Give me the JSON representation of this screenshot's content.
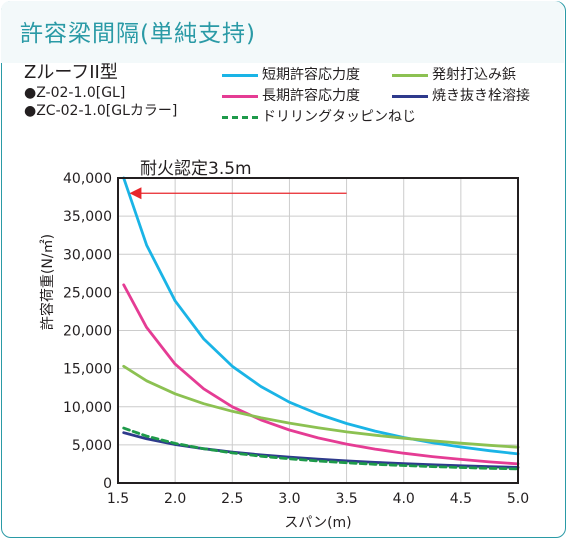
{
  "title": "許容梁間隔(単純支持)",
  "product": {
    "name": "ZルーフII型",
    "specs": [
      "●Z-02-1.0[GL]",
      "●ZC-02-1.0[GLカラー]"
    ]
  },
  "chart_data": {
    "type": "line",
    "xlabel": "スパン(m)",
    "ylabel": "許容荷重(N/㎡)",
    "xlim": [
      1.5,
      5.0
    ],
    "ylim": [
      0,
      40000
    ],
    "x_ticks": [
      "1.5",
      "2.0",
      "2.5",
      "3.0",
      "3.5",
      "4.0",
      "4.5",
      "5.0"
    ],
    "y_ticks": [
      "0",
      "5,000",
      "10,000",
      "15,000",
      "20,000",
      "25,000",
      "30,000",
      "35,000",
      "40,000"
    ],
    "grid": true,
    "series": [
      {
        "name": "短期許容応力度",
        "color": "#1ab4e6",
        "dash": false,
        "x": [
          1.55,
          1.75,
          2.0,
          2.25,
          2.5,
          2.75,
          3.0,
          3.25,
          3.5,
          3.75,
          4.0,
          4.25,
          4.5,
          4.75,
          5.0
        ],
        "y": [
          40000,
          31200,
          23900,
          18900,
          15300,
          12650,
          10600,
          9050,
          7800,
          6800,
          5970,
          5290,
          4720,
          4240,
          3820
        ]
      },
      {
        "name": "長期許容応力度",
        "color": "#e53c94",
        "dash": false,
        "x": [
          1.55,
          1.75,
          2.0,
          2.25,
          2.5,
          2.75,
          3.0,
          3.25,
          3.5,
          3.75,
          4.0,
          4.25,
          4.5,
          4.75,
          5.0
        ],
        "y": [
          26000,
          20400,
          15600,
          12350,
          10000,
          8280,
          6950,
          5920,
          5100,
          4450,
          3910,
          3460,
          3090,
          2770,
          2500
        ]
      },
      {
        "name": "発射打込み鋲",
        "color": "#8cc152",
        "dash": false,
        "x": [
          1.55,
          1.75,
          2.0,
          2.25,
          2.5,
          2.75,
          3.0,
          3.25,
          3.5,
          3.75,
          4.0,
          4.25,
          4.5,
          4.75,
          5.0
        ],
        "y": [
          15300,
          13400,
          11700,
          10400,
          9400,
          8550,
          7850,
          7250,
          6700,
          6270,
          5870,
          5530,
          5220,
          4950,
          4700
        ]
      },
      {
        "name": "焼き抜き栓溶接",
        "color": "#2e3a8c",
        "dash": false,
        "x": [
          1.55,
          1.75,
          2.0,
          2.25,
          2.5,
          2.75,
          3.0,
          3.25,
          3.5,
          3.75,
          4.0,
          4.25,
          4.5,
          4.75,
          5.0
        ],
        "y": [
          6600,
          5800,
          5050,
          4500,
          4050,
          3680,
          3380,
          3120,
          2900,
          2700,
          2540,
          2390,
          2260,
          2150,
          2050
        ]
      },
      {
        "name": "ドリリングタッピンねじ",
        "color": "#1e9a4a",
        "dash": true,
        "x": [
          1.55,
          1.75,
          2.0,
          2.25,
          2.5,
          2.75,
          3.0,
          3.25,
          3.5,
          3.75,
          4.0,
          4.25,
          4.5,
          4.75,
          5.0
        ],
        "y": [
          7200,
          6150,
          5200,
          4500,
          3950,
          3520,
          3170,
          2890,
          2650,
          2450,
          2290,
          2150,
          2030,
          1930,
          1850
        ]
      }
    ],
    "annotation": {
      "text": "耐火認定3.5m",
      "arrow_from": [
        3.5,
        38000
      ],
      "arrow_to": [
        1.6,
        38000
      ],
      "color": "#e8262b"
    }
  }
}
